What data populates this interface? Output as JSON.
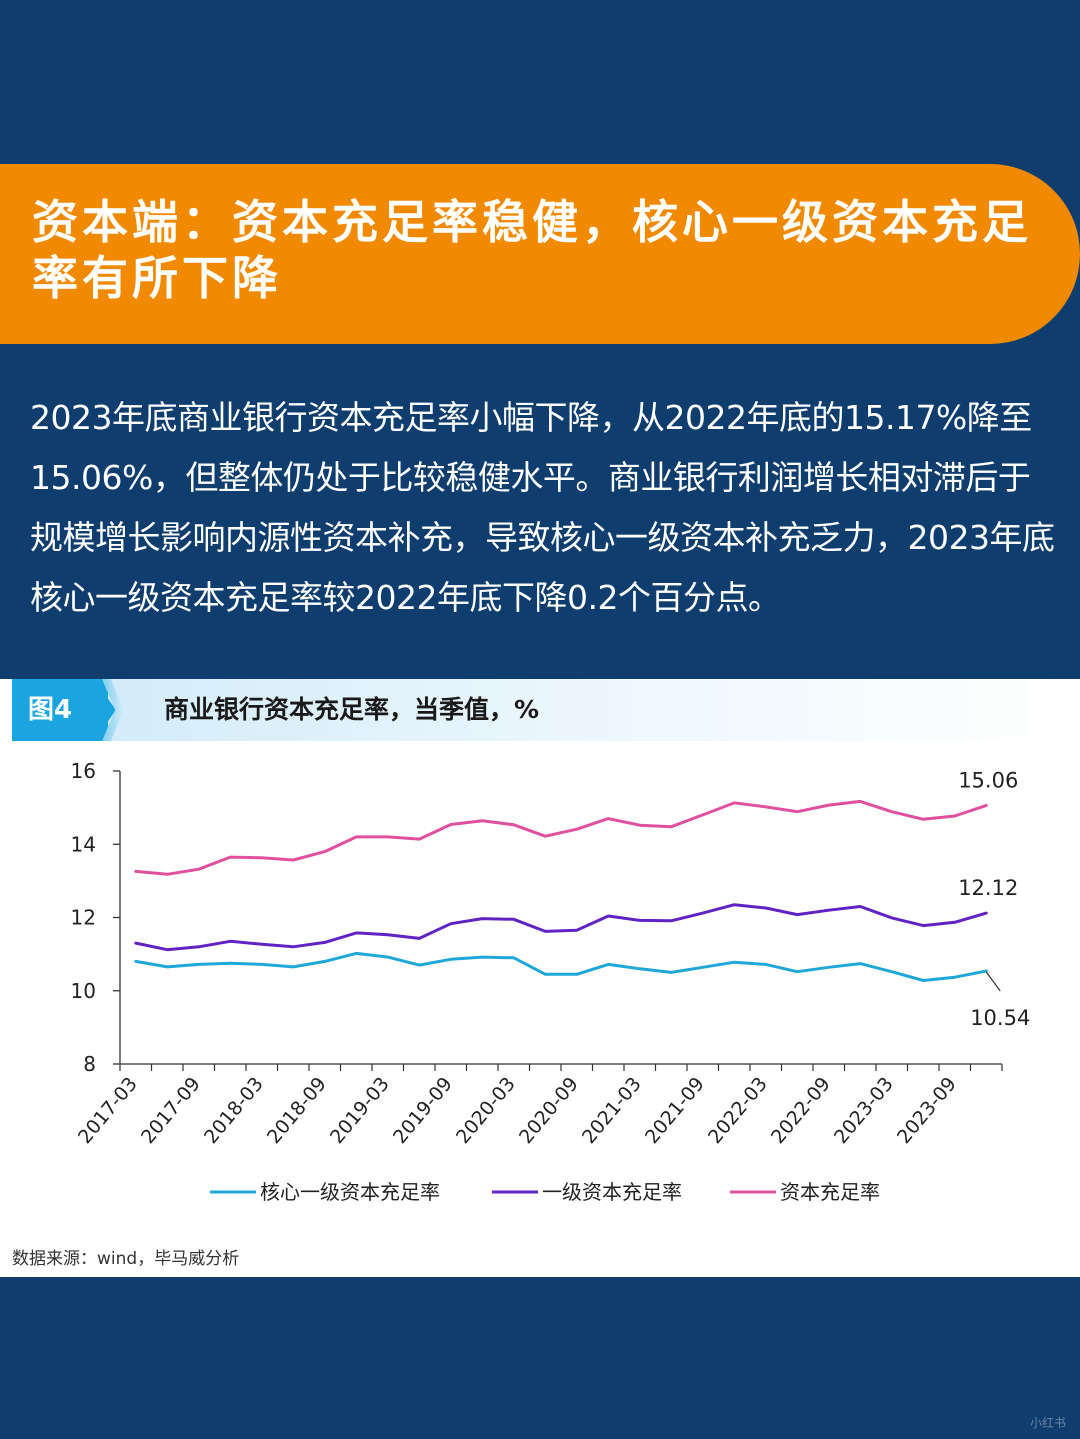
{
  "header": {
    "title": "资本端：资本充足率稳健，核心一级资本充足率有所下降"
  },
  "intro": {
    "text": "2023年底商业银行资本充足率小幅下降，从2022年底的15.17%降至15.06%，但整体仍处于比较稳健水平。商业银行利润增长相对滞后于规模增长影响内源性资本补充，导致核心一级资本补充乏力，2023年底核心一级资本充足率较2022年底下降0.2个百分点。"
  },
  "figure": {
    "tag": "图4",
    "title": "商业银行资本充足率，当季值，%"
  },
  "source": "数据来源：wind，毕马威分析",
  "watermark": "小红书",
  "colors": {
    "header_bg": "#0e3d6e",
    "banner": "#f18a00",
    "tag": "#1aa5e0"
  },
  "chart_data": {
    "type": "line",
    "x": [
      "2017-03",
      "2017-06",
      "2017-09",
      "2017-12",
      "2018-03",
      "2018-06",
      "2018-09",
      "2018-12",
      "2019-03",
      "2019-06",
      "2019-09",
      "2019-12",
      "2020-03",
      "2020-06",
      "2020-09",
      "2020-12",
      "2021-03",
      "2021-06",
      "2021-09",
      "2021-12",
      "2022-03",
      "2022-06",
      "2022-09",
      "2022-12",
      "2023-03",
      "2023-06",
      "2023-09",
      "2023-12"
    ],
    "xticks": [
      "2017-03",
      "2017-09",
      "2018-03",
      "2018-09",
      "2019-03",
      "2019-09",
      "2020-03",
      "2020-09",
      "2021-03",
      "2021-09",
      "2022-03",
      "2022-09",
      "2023-03",
      "2023-09"
    ],
    "ylim": [
      8,
      16
    ],
    "yticks": [
      8,
      10,
      12,
      14,
      16
    ],
    "legend_position": "bottom",
    "series": [
      {
        "name": "核心一级资本充足率",
        "color": "#1fa7d8",
        "values": [
          10.8,
          10.65,
          10.72,
          10.75,
          10.72,
          10.65,
          10.8,
          11.02,
          10.92,
          10.7,
          10.86,
          10.92,
          10.9,
          10.45,
          10.45,
          10.72,
          10.6,
          10.5,
          10.64,
          10.78,
          10.72,
          10.52,
          10.64,
          10.74,
          10.52,
          10.28,
          10.37,
          10.54
        ]
      },
      {
        "name": "一级资本充足率",
        "color": "#6223c4",
        "values": [
          11.3,
          11.12,
          11.2,
          11.35,
          11.27,
          11.2,
          11.32,
          11.58,
          11.53,
          11.43,
          11.83,
          11.97,
          11.95,
          11.62,
          11.65,
          12.04,
          11.92,
          11.91,
          12.12,
          12.35,
          12.26,
          12.08,
          12.2,
          12.3,
          11.99,
          11.78,
          11.87,
          12.12
        ]
      },
      {
        "name": "资本充足率",
        "color": "#e0509e",
        "values": [
          13.26,
          13.18,
          13.32,
          13.65,
          13.63,
          13.57,
          13.8,
          14.2,
          14.2,
          14.14,
          14.54,
          14.64,
          14.53,
          14.22,
          14.41,
          14.7,
          14.52,
          14.48,
          14.8,
          15.13,
          15.02,
          14.89,
          15.07,
          15.17,
          14.89,
          14.68,
          14.77,
          15.06
        ]
      }
    ],
    "annotations": [
      {
        "series": "资本充足率",
        "label": "15.06"
      },
      {
        "series": "一级资本充足率",
        "label": "12.12"
      },
      {
        "series": "核心一级资本充足率",
        "label": "10.54"
      }
    ]
  }
}
